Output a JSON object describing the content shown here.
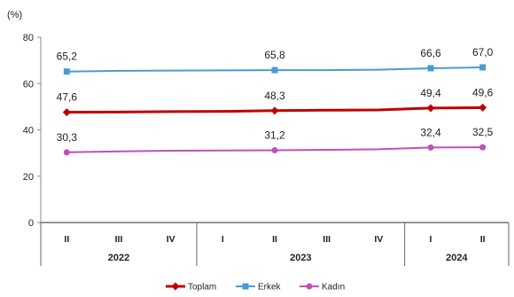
{
  "chart_data": {
    "type": "line",
    "unit": "(%)",
    "categories": [
      "II",
      "III",
      "IV",
      "I",
      "II",
      "III",
      "IV",
      "I",
      "II"
    ],
    "years": [
      {
        "label": "2022",
        "start": 0,
        "end": 2
      },
      {
        "label": "2023",
        "start": 3,
        "end": 6
      },
      {
        "label": "2024",
        "start": 7,
        "end": 8
      }
    ],
    "ylim": [
      0,
      80
    ],
    "yticks": [
      0,
      20,
      40,
      60,
      80
    ],
    "series": [
      {
        "name": "Toplam",
        "color": "#c00000",
        "marker": "diamond",
        "values": [
          47.6,
          47.7,
          47.9,
          48.0,
          48.3,
          48.5,
          48.6,
          49.4,
          49.6
        ],
        "labels": [
          {
            "i": 0,
            "text": "47,6"
          },
          {
            "i": 4,
            "text": "48,3"
          },
          {
            "i": 7,
            "text": "49,4"
          },
          {
            "i": 8,
            "text": "49,6"
          }
        ]
      },
      {
        "name": "Erkek",
        "color": "#4a9bd4",
        "marker": "square",
        "values": [
          65.2,
          65.5,
          65.6,
          65.7,
          65.8,
          65.8,
          66.0,
          66.6,
          67.0
        ],
        "labels": [
          {
            "i": 0,
            "text": "65,2"
          },
          {
            "i": 4,
            "text": "65,8"
          },
          {
            "i": 7,
            "text": "66,6"
          },
          {
            "i": 8,
            "text": "67,0"
          }
        ]
      },
      {
        "name": "Kadın",
        "color": "#c050b8",
        "marker": "circle",
        "values": [
          30.3,
          30.7,
          31.0,
          31.1,
          31.2,
          31.4,
          31.6,
          32.4,
          32.5
        ],
        "labels": [
          {
            "i": 0,
            "text": "30,3"
          },
          {
            "i": 4,
            "text": "31,2"
          },
          {
            "i": 7,
            "text": "32,4"
          },
          {
            "i": 8,
            "text": "32,5"
          }
        ]
      }
    ],
    "legend_position": "bottom"
  }
}
